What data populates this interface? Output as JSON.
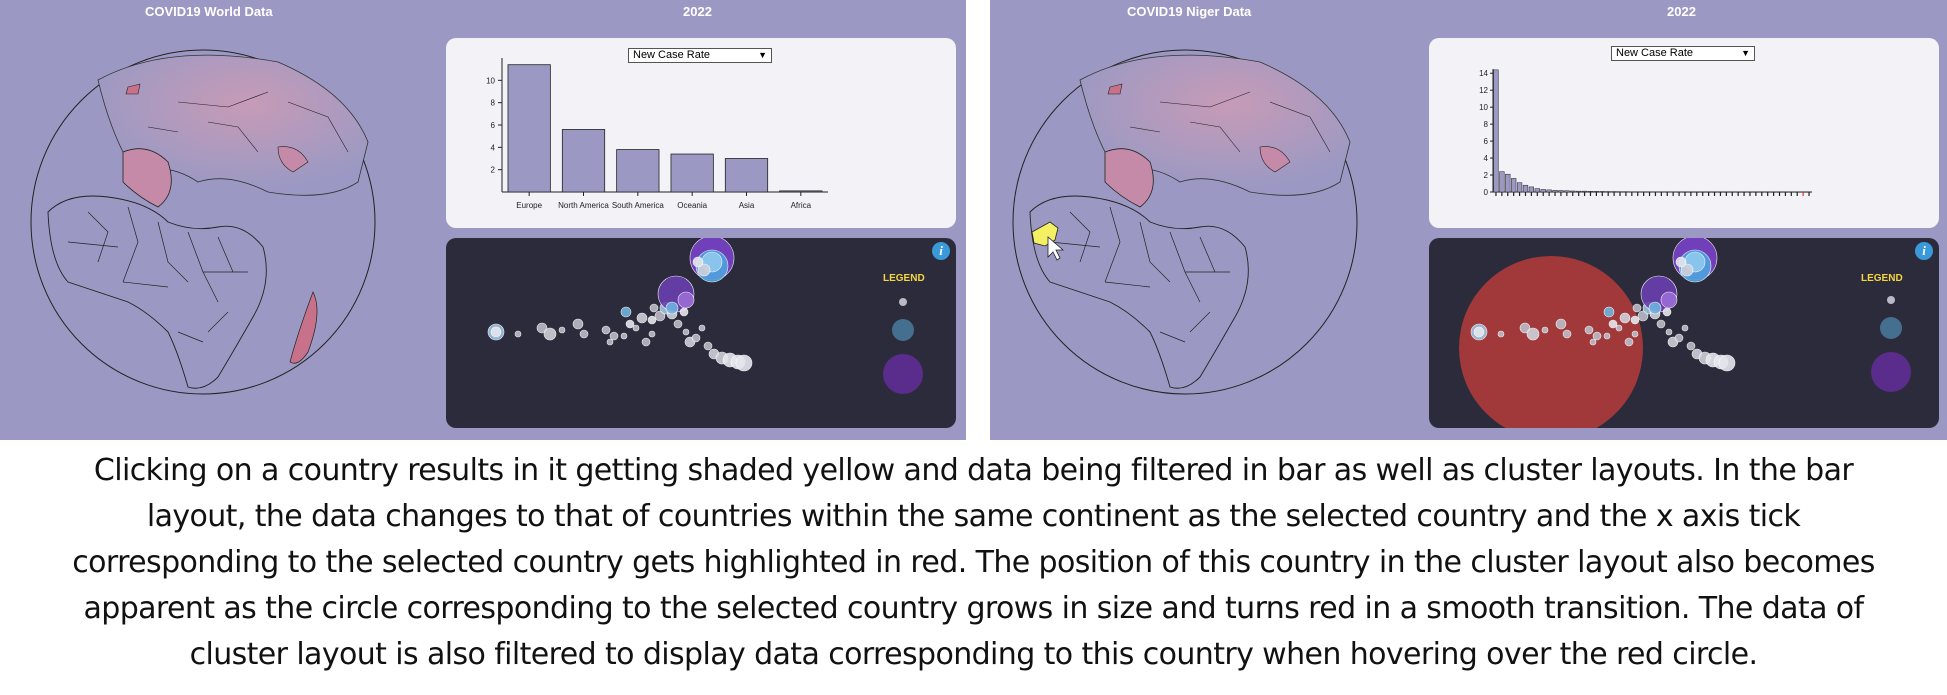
{
  "left": {
    "title": "COVID19 World Data",
    "year": "2022",
    "select": {
      "value": "New Case Rate"
    },
    "legend": {
      "title": "LEGEND"
    },
    "info_icon": "i",
    "chart_data": {
      "type": "bar",
      "categories": [
        "Europe",
        "North America",
        "South America",
        "Oceania",
        "Asia",
        "Africa"
      ],
      "values": [
        11.4,
        5.6,
        3.8,
        3.4,
        3.0,
        0.1
      ],
      "yticks": [
        2,
        4,
        6,
        8,
        10
      ],
      "ylim": [
        0,
        12
      ]
    }
  },
  "right": {
    "title": "COVID19 Niger Data",
    "year": "2022",
    "select": {
      "value": "New Case Rate"
    },
    "legend": {
      "title": "LEGEND"
    },
    "info_icon": "i",
    "chart_data": {
      "type": "bar",
      "values": [
        14.4,
        2.4,
        2.1,
        1.6,
        1.1,
        0.8,
        0.6,
        0.4,
        0.3,
        0.25,
        0.2,
        0.18,
        0.15,
        0.12,
        0.1,
        0.1,
        0.08,
        0.07,
        0.06,
        0.05,
        0.05,
        0.04,
        0.04,
        0.03,
        0.03,
        0.03,
        0.02,
        0.02,
        0.02,
        0.02,
        0.02,
        0.01,
        0.01,
        0.01,
        0.01,
        0.01,
        0.01,
        0.01,
        0.01,
        0.01,
        0.01,
        0.01,
        0.01,
        0.01,
        0.01,
        0.01,
        0.01,
        0.01,
        0.01,
        0.01,
        0.01,
        0.01,
        0.01,
        0.01
      ],
      "highlight_index": 52,
      "yticks": [
        0,
        2,
        4,
        6,
        8,
        10,
        12,
        14
      ],
      "ylim": [
        0,
        14.5
      ]
    }
  },
  "colors": {
    "panel_bg": "#9b99c3",
    "bar_fill": "#9b99c3",
    "selected_country": "#f4ef63",
    "highlight": "#d23b3b",
    "cluster_bg": "#2b2b3c"
  },
  "caption": [
    "Clicking on a country results in it getting shaded yellow and data being filtered in bar as well as cluster layouts. In the bar",
    "layout, the data changes to that of countries within the same continent as the selected country and the x axis tick",
    "corresponding to the selected country gets highlighted in red. The position of this country in the cluster layout also becomes",
    "apparent as the circle corresponding to the selected country grows in size and turns red in a smooth transition. The data of",
    "cluster layout is also filtered to display data corresponding to this country when hovering over the red circle."
  ]
}
